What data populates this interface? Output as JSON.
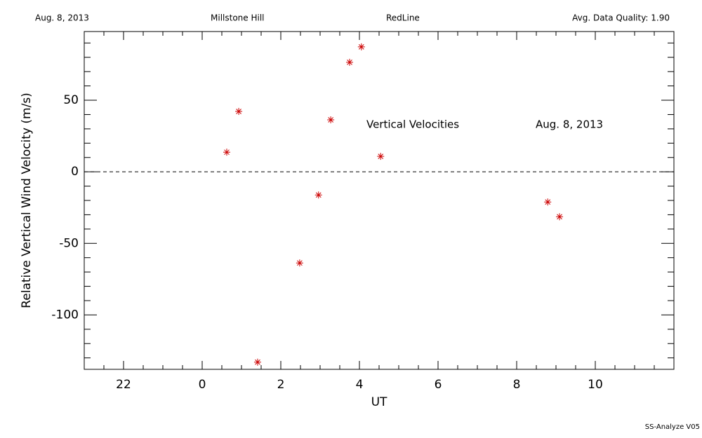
{
  "header": {
    "left": "Aug. 8, 2013",
    "center_left": "Millstone Hill",
    "center_right": "RedLine",
    "right": "Avg. Data Quality: 1.90"
  },
  "footer": "SS-Analyze V05",
  "chart_data": {
    "type": "scatter",
    "xlabel": "UT",
    "ylabel": "Relative Vertical Wind Velocity (m/s)",
    "annotations": [
      "Vertical Velocities",
      "Aug. 8, 2013"
    ],
    "x": [
      0.625,
      0.93,
      1.41,
      2.48,
      2.96,
      3.27,
      3.75,
      4.05,
      4.54,
      8.79,
      9.09
    ],
    "values": [
      13.7,
      42.2,
      -133,
      -63.7,
      -16.2,
      36.3,
      76.5,
      87.3,
      10.8,
      -21.1,
      -31.4
    ],
    "color": "#cc0000",
    "xlim": [
      -3,
      12
    ],
    "ylim": [
      -138,
      98
    ],
    "xticks": [
      {
        "value": -2,
        "label": "22"
      },
      0,
      2,
      4,
      6,
      8,
      10
    ],
    "xminorticks": [
      -2.5,
      -1.5,
      -1,
      -0.5,
      0.5,
      1,
      1.5,
      2.5,
      3,
      3.5,
      4.5,
      5,
      5.5,
      6.5,
      7,
      7.5,
      8.5,
      9,
      9.5,
      10.5,
      11,
      11.5
    ],
    "yticks": [
      -100,
      -50,
      0,
      50
    ],
    "yminorticks": [
      -130,
      -120,
      -110,
      -90,
      -80,
      -70,
      -60,
      -40,
      -30,
      -20,
      -10,
      10,
      20,
      30,
      40,
      60,
      70,
      80,
      90
    ],
    "hline": 0
  }
}
